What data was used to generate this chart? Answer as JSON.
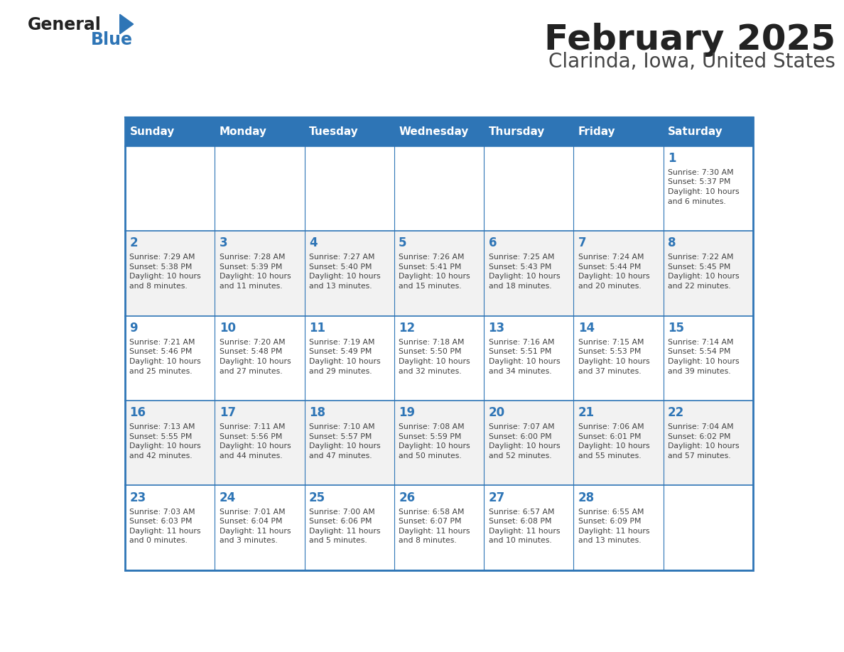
{
  "title": "February 2025",
  "subtitle": "Clarinda, Iowa, United States",
  "header_bg": "#2E75B6",
  "header_text_color": "#FFFFFF",
  "cell_bg": "#FFFFFF",
  "alt_cell_bg": "#F2F2F2",
  "border_color": "#2E75B6",
  "text_color": "#404040",
  "day_number_color": "#2E75B6",
  "days_of_week": [
    "Sunday",
    "Monday",
    "Tuesday",
    "Wednesday",
    "Thursday",
    "Friday",
    "Saturday"
  ],
  "weeks": [
    [
      {
        "day": "",
        "info": ""
      },
      {
        "day": "",
        "info": ""
      },
      {
        "day": "",
        "info": ""
      },
      {
        "day": "",
        "info": ""
      },
      {
        "day": "",
        "info": ""
      },
      {
        "day": "",
        "info": ""
      },
      {
        "day": "1",
        "info": "Sunrise: 7:30 AM\nSunset: 5:37 PM\nDaylight: 10 hours\nand 6 minutes."
      }
    ],
    [
      {
        "day": "2",
        "info": "Sunrise: 7:29 AM\nSunset: 5:38 PM\nDaylight: 10 hours\nand 8 minutes."
      },
      {
        "day": "3",
        "info": "Sunrise: 7:28 AM\nSunset: 5:39 PM\nDaylight: 10 hours\nand 11 minutes."
      },
      {
        "day": "4",
        "info": "Sunrise: 7:27 AM\nSunset: 5:40 PM\nDaylight: 10 hours\nand 13 minutes."
      },
      {
        "day": "5",
        "info": "Sunrise: 7:26 AM\nSunset: 5:41 PM\nDaylight: 10 hours\nand 15 minutes."
      },
      {
        "day": "6",
        "info": "Sunrise: 7:25 AM\nSunset: 5:43 PM\nDaylight: 10 hours\nand 18 minutes."
      },
      {
        "day": "7",
        "info": "Sunrise: 7:24 AM\nSunset: 5:44 PM\nDaylight: 10 hours\nand 20 minutes."
      },
      {
        "day": "8",
        "info": "Sunrise: 7:22 AM\nSunset: 5:45 PM\nDaylight: 10 hours\nand 22 minutes."
      }
    ],
    [
      {
        "day": "9",
        "info": "Sunrise: 7:21 AM\nSunset: 5:46 PM\nDaylight: 10 hours\nand 25 minutes."
      },
      {
        "day": "10",
        "info": "Sunrise: 7:20 AM\nSunset: 5:48 PM\nDaylight: 10 hours\nand 27 minutes."
      },
      {
        "day": "11",
        "info": "Sunrise: 7:19 AM\nSunset: 5:49 PM\nDaylight: 10 hours\nand 29 minutes."
      },
      {
        "day": "12",
        "info": "Sunrise: 7:18 AM\nSunset: 5:50 PM\nDaylight: 10 hours\nand 32 minutes."
      },
      {
        "day": "13",
        "info": "Sunrise: 7:16 AM\nSunset: 5:51 PM\nDaylight: 10 hours\nand 34 minutes."
      },
      {
        "day": "14",
        "info": "Sunrise: 7:15 AM\nSunset: 5:53 PM\nDaylight: 10 hours\nand 37 minutes."
      },
      {
        "day": "15",
        "info": "Sunrise: 7:14 AM\nSunset: 5:54 PM\nDaylight: 10 hours\nand 39 minutes."
      }
    ],
    [
      {
        "day": "16",
        "info": "Sunrise: 7:13 AM\nSunset: 5:55 PM\nDaylight: 10 hours\nand 42 minutes."
      },
      {
        "day": "17",
        "info": "Sunrise: 7:11 AM\nSunset: 5:56 PM\nDaylight: 10 hours\nand 44 minutes."
      },
      {
        "day": "18",
        "info": "Sunrise: 7:10 AM\nSunset: 5:57 PM\nDaylight: 10 hours\nand 47 minutes."
      },
      {
        "day": "19",
        "info": "Sunrise: 7:08 AM\nSunset: 5:59 PM\nDaylight: 10 hours\nand 50 minutes."
      },
      {
        "day": "20",
        "info": "Sunrise: 7:07 AM\nSunset: 6:00 PM\nDaylight: 10 hours\nand 52 minutes."
      },
      {
        "day": "21",
        "info": "Sunrise: 7:06 AM\nSunset: 6:01 PM\nDaylight: 10 hours\nand 55 minutes."
      },
      {
        "day": "22",
        "info": "Sunrise: 7:04 AM\nSunset: 6:02 PM\nDaylight: 10 hours\nand 57 minutes."
      }
    ],
    [
      {
        "day": "23",
        "info": "Sunrise: 7:03 AM\nSunset: 6:03 PM\nDaylight: 11 hours\nand 0 minutes."
      },
      {
        "day": "24",
        "info": "Sunrise: 7:01 AM\nSunset: 6:04 PM\nDaylight: 11 hours\nand 3 minutes."
      },
      {
        "day": "25",
        "info": "Sunrise: 7:00 AM\nSunset: 6:06 PM\nDaylight: 11 hours\nand 5 minutes."
      },
      {
        "day": "26",
        "info": "Sunrise: 6:58 AM\nSunset: 6:07 PM\nDaylight: 11 hours\nand 8 minutes."
      },
      {
        "day": "27",
        "info": "Sunrise: 6:57 AM\nSunset: 6:08 PM\nDaylight: 11 hours\nand 10 minutes."
      },
      {
        "day": "28",
        "info": "Sunrise: 6:55 AM\nSunset: 6:09 PM\nDaylight: 11 hours\nand 13 minutes."
      },
      {
        "day": "",
        "info": ""
      }
    ]
  ],
  "logo_text_general": "General",
  "logo_text_blue": "Blue",
  "logo_color_general": "#222222",
  "logo_color_blue": "#2E75B6",
  "logo_triangle_color": "#2E75B6"
}
